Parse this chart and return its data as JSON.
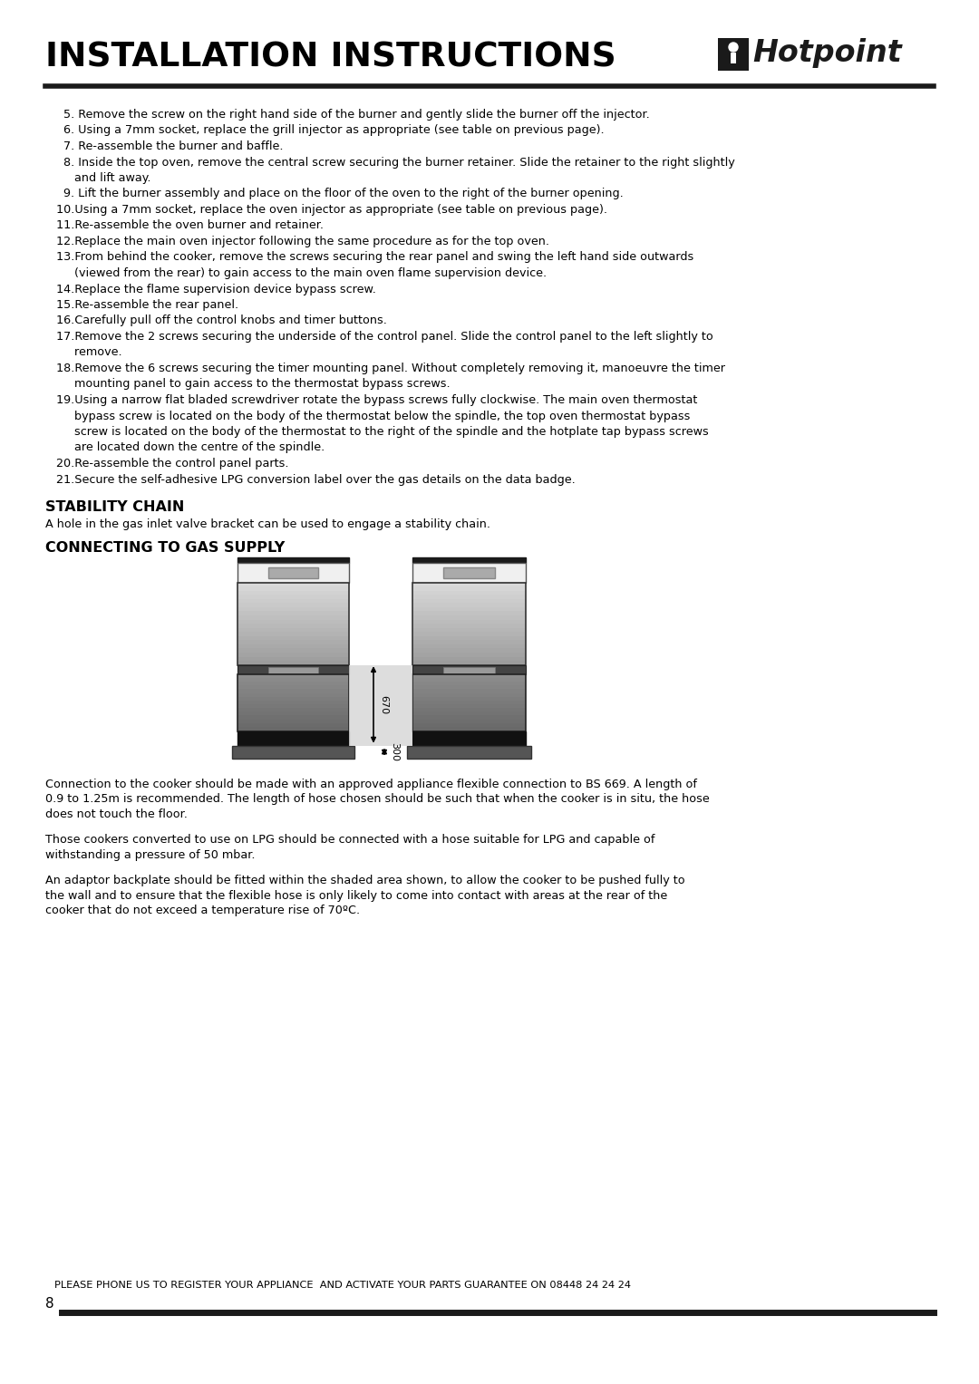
{
  "title": "INSTALLATION INSTRUCTIONS",
  "brand": "Hotpoint",
  "bg_color": "#ffffff",
  "text_color": "#000000",
  "page_number": "8",
  "footer_text": "PLEASE PHONE US TO REGISTER YOUR APPLIANCE  AND ACTIVATE YOUR PARTS GUARANTEE ON 08448 24 24 24",
  "stability_chain_title": "STABILITY CHAIN",
  "stability_chain_text": "A hole in the gas inlet valve bracket can be used to engage a stability chain.",
  "gas_supply_title": "CONNECTING TO GAS SUPPLY",
  "body_items": [
    [
      "5.",
      " Remove the screw on the right hand side of the burner and gently slide the burner off the injector."
    ],
    [
      "6.",
      " Using a 7mm socket, replace the grill injector as appropriate (see table on previous page)."
    ],
    [
      "7.",
      " Re-assemble the burner and baffle."
    ],
    [
      "8.",
      " Inside the top oven, remove the central screw securing the burner retainer. Slide the retainer to the right slightly\n     and lift away."
    ],
    [
      "9.",
      " Lift the burner assembly and place on the floor of the oven to the right of the burner opening."
    ],
    [
      "10.",
      "Using a 7mm socket, replace the oven injector as appropriate (see table on previous page)."
    ],
    [
      "11.",
      "Re-assemble the oven burner and retainer."
    ],
    [
      "12.",
      "Replace the main oven injector following the same procedure as for the top oven."
    ],
    [
      "13.",
      "From behind the cooker, remove the screws securing the rear panel and swing the left hand side outwards\n     (viewed from the rear) to gain access to the main oven flame supervision device."
    ],
    [
      "14.",
      "Replace the flame supervision device bypass screw."
    ],
    [
      "15.",
      "Re-assemble the rear panel."
    ],
    [
      "16.",
      "Carefully pull off the control knobs and timer buttons."
    ],
    [
      "17.",
      "Remove the 2 screws securing the underside of the control panel. Slide the control panel to the left slightly to\n     remove."
    ],
    [
      "18.",
      "Remove the 6 screws securing the timer mounting panel. Without completely removing it, manoeuvre the timer\n     mounting panel to gain access to the thermostat bypass screws."
    ],
    [
      "19.",
      "Using a narrow flat bladed screwdriver rotate the bypass screws fully clockwise. The main oven thermostat\n     bypass screw is located on the body of the thermostat below the spindle, the top oven thermostat bypass\n     screw is located on the body of the thermostat to the right of the spindle and the hotplate tap bypass screws\n     are located down the centre of the spindle."
    ],
    [
      "20.",
      "Re-assemble the control panel parts."
    ],
    [
      "21.",
      "Secure the self-adhesive LPG conversion label over the gas details on the data badge."
    ]
  ],
  "para1": "Connection to the cooker should be made with an approved appliance flexible connection to BS 669. A length of 0.9 to 1.25m is recommended. The length of hose chosen should be such that when the cooker is in situ, the hose does not touch the floor.",
  "para2": "Those cookers converted to use on LPG should be connected with a hose suitable for LPG and capable of withstanding a pressure of 50 mbar.",
  "para3": "An adaptor backplate should be fitted within the shaded area shown, to allow the cooker to be pushed fully to the wall and to ensure that the flexible hose is only likely to come into contact with areas at the rear of the cooker that do not exceed a temperature rise of 70ºC."
}
